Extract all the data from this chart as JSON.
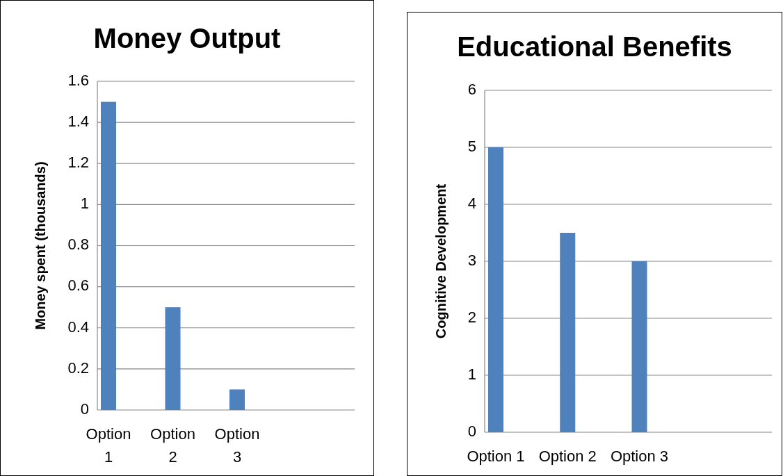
{
  "chart_data": [
    {
      "type": "bar",
      "title": "Money Output",
      "ylabel": "Money spent (thousands)",
      "categories": [
        "Option 1",
        "Option 2",
        "Option 3",
        null
      ],
      "values": [
        1.5,
        0.5,
        0.1,
        null
      ],
      "color": "#4f81bd",
      "ylim": [
        0,
        1.6
      ],
      "yticks": [
        0,
        0.2,
        0.4,
        0.6,
        0.8,
        1,
        1.2,
        1.4,
        1.6
      ],
      "grid": "y"
    },
    {
      "type": "bar",
      "title": "Educational Benefits",
      "ylabel": "Cognitive Development",
      "categories": [
        "Option 1",
        "Option 2",
        "Option 3",
        null
      ],
      "values": [
        5,
        3.5,
        3,
        null
      ],
      "color": "#4f81bd",
      "ylim": [
        0,
        6
      ],
      "yticks": [
        0,
        1,
        2,
        3,
        4,
        5,
        6
      ],
      "grid": "y"
    }
  ]
}
